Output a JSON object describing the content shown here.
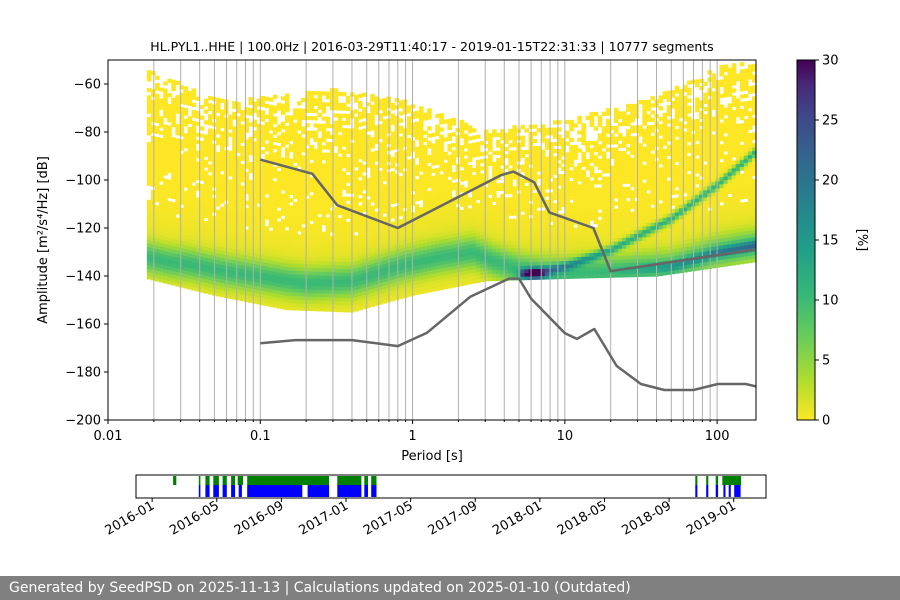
{
  "chart_data": [
    {
      "type": "heatmap",
      "title": "HL.PYL1..HHE | 100.0Hz | 2016-03-29T11:40:17 - 2019-01-15T22:31:33 | 10777 segments",
      "xlabel": "Period [s]",
      "ylabel": "Amplitude [m²/s⁴/Hz] [dB]",
      "xscale": "log",
      "xlim": [
        0.01,
        180
      ],
      "ylim": [
        -200,
        -50
      ],
      "x_ticks": [
        "0.01",
        "0.1",
        "1",
        "10",
        "100"
      ],
      "x_tick_values": [
        0.01,
        0.1,
        1,
        10,
        100
      ],
      "y_ticks": [
        "−60",
        "−80",
        "−100",
        "−120",
        "−140",
        "−160",
        "−180",
        "−200"
      ],
      "y_tick_values": [
        -60,
        -80,
        -100,
        -120,
        -140,
        -160,
        -180,
        -200
      ],
      "grid_x": true,
      "colorbar": {
        "label": "[%]",
        "min": 0,
        "max": 30,
        "ticks": [
          "0",
          "5",
          "10",
          "15",
          "20",
          "25",
          "30"
        ],
        "tick_values": [
          0,
          5,
          10,
          15,
          20,
          25,
          30
        ],
        "colormap": "viridis_r"
      },
      "reference_lines": [
        {
          "name": "upper noise model",
          "color": "#666666",
          "points": [
            [
              0.1,
              -91.5
            ],
            [
              0.22,
              -97.4
            ],
            [
              0.32,
              -110.5
            ],
            [
              0.8,
              -120
            ],
            [
              3.8,
              -98
            ],
            [
              4.6,
              -96.5
            ],
            [
              6.3,
              -101
            ],
            [
              7.9,
              -113.5
            ],
            [
              15.4,
              -120
            ],
            [
              20,
              -138
            ],
            [
              176,
              -129
            ]
          ]
        },
        {
          "name": "lower noise model",
          "color": "#666666",
          "points": [
            [
              0.1,
              -168
            ],
            [
              0.17,
              -166.7
            ],
            [
              0.4,
              -166.7
            ],
            [
              0.8,
              -169.2
            ],
            [
              1.24,
              -163.7
            ],
            [
              2.4,
              -148.6
            ],
            [
              4.3,
              -141.1
            ],
            [
              5.0,
              -141.1
            ],
            [
              6.0,
              -149.4
            ],
            [
              10,
              -163.8
            ],
            [
              12,
              -166.2
            ],
            [
              15.6,
              -162.1
            ],
            [
              21.9,
              -177.5
            ],
            [
              31.6,
              -185
            ],
            [
              45,
              -187.5
            ],
            [
              70,
              -187.5
            ],
            [
              101,
              -185
            ],
            [
              154,
              -185
            ],
            [
              180,
              -186
            ]
          ]
        }
      ],
      "density": {
        "envelope_top": [
          [
            0.018,
            -55
          ],
          [
            0.06,
            -68
          ],
          [
            0.3,
            -63
          ],
          [
            1,
            -68
          ],
          [
            3,
            -80
          ],
          [
            10,
            -76
          ],
          [
            40,
            -66
          ],
          [
            100,
            -54
          ],
          [
            180,
            -50
          ]
        ],
        "envelope_bottom": [
          [
            0.018,
            -141
          ],
          [
            0.05,
            -148
          ],
          [
            0.15,
            -154
          ],
          [
            0.4,
            -155
          ],
          [
            1,
            -148
          ],
          [
            3,
            -142
          ],
          [
            10,
            -141
          ],
          [
            40,
            -140
          ],
          [
            180,
            -134
          ]
        ],
        "main_band": [
          [
            0.018,
            -132
          ],
          [
            0.025,
            -134
          ],
          [
            0.035,
            -135
          ],
          [
            0.06,
            -138
          ],
          [
            0.1,
            -140
          ],
          [
            0.2,
            -143
          ],
          [
            0.4,
            -142
          ],
          [
            0.8,
            -136
          ],
          [
            1.5,
            -132
          ],
          [
            2.5,
            -130
          ],
          [
            3.5,
            -134
          ],
          [
            5,
            -137
          ],
          [
            7,
            -138.5
          ],
          [
            10,
            -139
          ],
          [
            20,
            -138
          ],
          [
            50,
            -136
          ],
          [
            100,
            -130
          ],
          [
            180,
            -127
          ]
        ],
        "branch": [
          [
            5,
            -139
          ],
          [
            7,
            -138
          ],
          [
            10,
            -136
          ],
          [
            20,
            -129
          ],
          [
            50,
            -116
          ],
          [
            100,
            -102
          ],
          [
            180,
            -88
          ]
        ],
        "peak_period": 6.3,
        "peak_db": -139
      }
    },
    {
      "type": "timeline",
      "x_ticks": [
        "2016-01",
        "2016-05",
        "2016-09",
        "2017-01",
        "2017-05",
        "2017-09",
        "2018-01",
        "2018-05",
        "2018-09",
        "2019-01"
      ],
      "xlim": [
        "2015-12",
        "2019-03"
      ],
      "series": [
        {
          "name": "data available",
          "color": "#008000",
          "ranges": [
            [
              "2016-02-10",
              "2016-02-16"
            ],
            [
              "2016-03-28",
              "2016-03-31"
            ],
            [
              "2016-04-10",
              "2016-04-18"
            ],
            [
              "2016-04-25",
              "2016-05-05"
            ],
            [
              "2016-05-12",
              "2016-05-20"
            ],
            [
              "2016-05-28",
              "2016-06-05"
            ],
            [
              "2016-06-10",
              "2016-06-20"
            ],
            [
              "2016-06-28",
              "2016-11-30"
            ],
            [
              "2016-12-15",
              "2017-01-30"
            ],
            [
              "2017-02-05",
              "2017-02-12"
            ],
            [
              "2017-02-18",
              "2017-02-28"
            ],
            [
              "2018-10-20",
              "2018-10-24"
            ],
            [
              "2018-11-10",
              "2018-11-14"
            ],
            [
              "2018-11-28",
              "2018-12-02"
            ],
            [
              "2018-12-10",
              "2019-01-15"
            ]
          ]
        },
        {
          "name": "psd computed",
          "color": "#0000ff",
          "ranges": [
            [
              "2016-03-28",
              "2016-03-31"
            ],
            [
              "2016-04-10",
              "2016-04-18"
            ],
            [
              "2016-04-25",
              "2016-05-05"
            ],
            [
              "2016-05-12",
              "2016-05-20"
            ],
            [
              "2016-05-28",
              "2016-06-05"
            ],
            [
              "2016-06-12",
              "2016-06-18"
            ],
            [
              "2016-06-28",
              "2016-10-10"
            ],
            [
              "2016-10-20",
              "2016-11-30"
            ],
            [
              "2016-12-15",
              "2017-01-30"
            ],
            [
              "2017-02-05",
              "2017-02-12"
            ],
            [
              "2017-02-18",
              "2017-02-28"
            ],
            [
              "2018-10-20",
              "2018-10-24"
            ],
            [
              "2018-11-10",
              "2018-11-14"
            ],
            [
              "2018-11-28",
              "2018-12-02"
            ],
            [
              "2018-12-12",
              "2018-12-16"
            ],
            [
              "2018-12-22",
              "2018-12-26"
            ],
            [
              "2019-01-02",
              "2019-01-14"
            ]
          ]
        }
      ]
    }
  ],
  "footer": {
    "text": "Generated by SeedPSD on 2025-11-13 | Calculations updated on 2025-01-10 (Outdated)"
  }
}
